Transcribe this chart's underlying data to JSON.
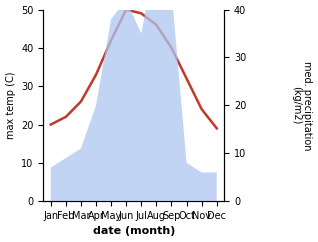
{
  "months": [
    "Jan",
    "Feb",
    "Mar",
    "Apr",
    "May",
    "Jun",
    "Jul",
    "Aug",
    "Sep",
    "Oct",
    "Nov",
    "Dec"
  ],
  "month_indices": [
    1,
    2,
    3,
    4,
    5,
    6,
    7,
    8,
    9,
    10,
    11,
    12
  ],
  "temperature": [
    20,
    22,
    26,
    33,
    42,
    50,
    49,
    46,
    40,
    32,
    24,
    19
  ],
  "precipitation": [
    7,
    9,
    11,
    20,
    38,
    42,
    35,
    52,
    44,
    8,
    6,
    6
  ],
  "temp_ylim": [
    0,
    50
  ],
  "precip_ylim": [
    0,
    40
  ],
  "temp_color": "#c0392b",
  "precip_fill_color": "#aec6f0",
  "precip_fill_alpha": 0.75,
  "xlabel": "date (month)",
  "ylabel_left": "max temp (C)",
  "ylabel_right": "med. precipitation\n(kg/m2)",
  "temp_linewidth": 1.8,
  "left_yticks": [
    0,
    10,
    20,
    30,
    40,
    50
  ],
  "right_yticks": [
    0,
    10,
    20,
    30,
    40
  ],
  "bg_color": "#ffffff",
  "tick_fontsize": 7,
  "label_fontsize": 7,
  "xlabel_fontsize": 8
}
